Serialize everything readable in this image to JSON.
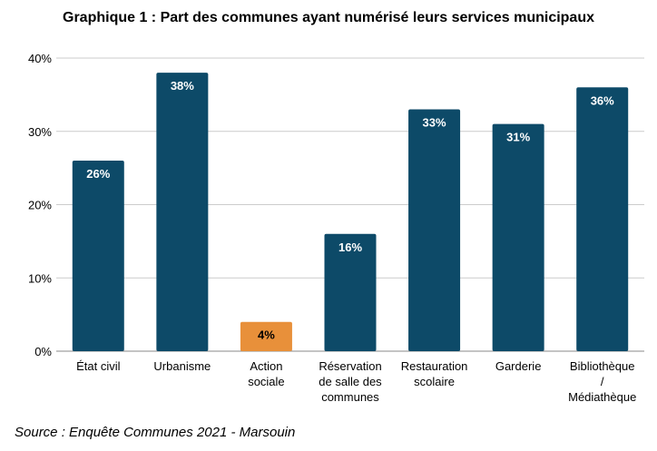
{
  "title": "Graphique 1 : Part des communes ayant numérisé leurs services municipaux",
  "source": "Source : Enquête Communes 2021 - Marsouin",
  "chart_data": {
    "type": "bar",
    "title": "Graphique 1 : Part des communes ayant numérisé leurs services municipaux",
    "categories": [
      [
        "État civil"
      ],
      [
        "Urbanisme"
      ],
      [
        "Action",
        "sociale"
      ],
      [
        "Réservation",
        "de salle des",
        "communes"
      ],
      [
        "Restauration",
        "scolaire"
      ],
      [
        "Garderie"
      ],
      [
        "Bibliothèque",
        "/",
        "Médiathèque"
      ]
    ],
    "values": [
      26,
      38,
      4,
      16,
      33,
      31,
      36
    ],
    "labels": [
      "26%",
      "38%",
      "4%",
      "16%",
      "33%",
      "31%",
      "36%"
    ],
    "highlight_index": 2,
    "ylim": [
      0,
      40
    ],
    "yticks": [
      0,
      10,
      20,
      30,
      40
    ],
    "ytick_labels": [
      "0%",
      "10%",
      "20%",
      "30%",
      "40%"
    ],
    "grid": true,
    "colors": {
      "bar": "#0d4a68",
      "highlight": "#e8903a",
      "grid": "#cccccc",
      "axis": "#888888"
    }
  }
}
